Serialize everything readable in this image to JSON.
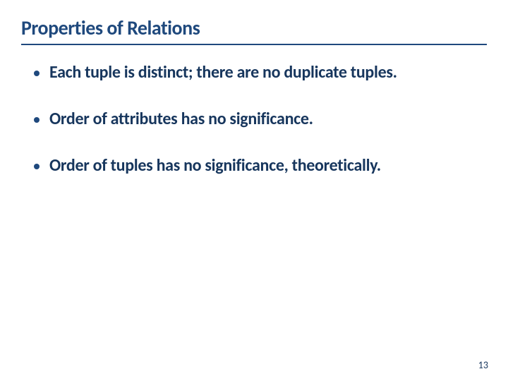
{
  "slide": {
    "title": "Properties of Relations",
    "title_color": "#1f497d",
    "title_fontsize": 28,
    "underline_color": "#1f497d",
    "bullets": [
      "Each tuple is distinct; there are no duplicate tuples.",
      "Order of attributes has no significance.",
      "Order of tuples has no significance, theoretically."
    ],
    "bullet_color": "#1f497d",
    "body_text_color": "#17365d",
    "body_fontsize": 24,
    "page_number": "13",
    "page_number_color": "#17365d",
    "page_number_fontsize": 14,
    "background_color": "#ffffff"
  }
}
